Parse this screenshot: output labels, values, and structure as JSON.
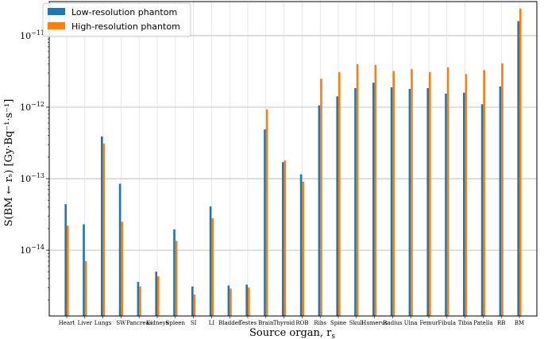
{
  "chart_data": {
    "type": "bar",
    "xlabel": "Source organ, r",
    "xlabel_sub": "s",
    "ylabel": "S(BM ← rₛ) [Gy·Bq⁻¹·s⁻¹]",
    "yscale": "log",
    "ylim": [
      1.2e-15,
      3e-11
    ],
    "yticks": [
      {
        "value": 1e-14,
        "base": "10",
        "exp": "−14"
      },
      {
        "value": 1e-13,
        "base": "10",
        "exp": "−13"
      },
      {
        "value": 1e-12,
        "base": "10",
        "exp": "−12"
      },
      {
        "value": 1e-11,
        "base": "10",
        "exp": "−11"
      }
    ],
    "grid": true,
    "legend_position": "top-left",
    "categories": [
      "Heart",
      "Liver",
      "Lungs",
      "SW",
      "Pancreas",
      "Kidneys",
      "Spleen",
      "SI",
      "LI",
      "Bladder",
      "Testes",
      "Brain",
      "Thyroid",
      "ROB",
      "Ribs",
      "Spine",
      "Skull",
      "Humerus",
      "Radius",
      "Ulna",
      "Femur",
      "Fibula",
      "Tibia",
      "Patella",
      "RB",
      "BM"
    ],
    "series": [
      {
        "name": "Low-resolution phantom",
        "color": "#1f77b4",
        "values": [
          4.4e-14,
          2.3e-14,
          3.9e-13,
          8.5e-14,
          3.6e-15,
          5e-15,
          1.95e-14,
          3.1e-15,
          4.1e-14,
          3.2e-15,
          3.3e-15,
          4.9e-13,
          1.7e-13,
          1.15e-13,
          1.06e-12,
          1.42e-12,
          1.85e-12,
          2.2e-12,
          1.9e-12,
          1.8e-12,
          1.85e-12,
          1.55e-12,
          1.6e-12,
          1.1e-12,
          1.95e-12,
          1.6e-11
        ]
      },
      {
        "name": "High-resolution phantom",
        "color": "#ff7f0e",
        "values": [
          2.2e-14,
          7e-15,
          3.1e-13,
          2.5e-14,
          3.1e-15,
          4.3e-15,
          1.35e-14,
          2.4e-15,
          2.8e-14,
          2.9e-15,
          3e-15,
          9.3e-13,
          1.8e-13,
          9.1e-14,
          2.5e-12,
          3.1e-12,
          4e-12,
          3.9e-12,
          3.2e-12,
          3.4e-12,
          3.1e-12,
          3.6e-12,
          2.9e-12,
          3.3e-12,
          4.1e-12,
          2.4e-11
        ]
      }
    ]
  }
}
